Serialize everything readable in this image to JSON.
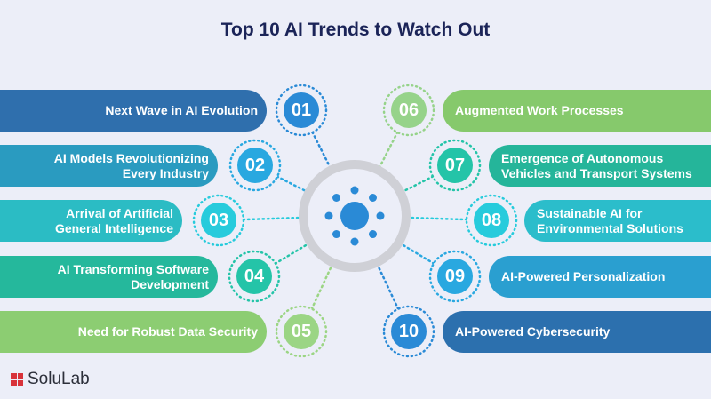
{
  "title": "Top 10 AI Trends to Watch Out",
  "trends": [
    {
      "num": "01",
      "label": "Next Wave in AI Evolution",
      "bar": "#2f6fad",
      "circle": "#2a8ad6"
    },
    {
      "num": "02",
      "label": "AI Models Revolutionizing Every Industry",
      "bar": "#2a9bc0",
      "circle": "#29a8e0"
    },
    {
      "num": "03",
      "label": "Arrival of Artificial General Intelligence",
      "bar": "#2bbcc4",
      "circle": "#27cbdc"
    },
    {
      "num": "04",
      "label": "AI Transforming Software Development",
      "bar": "#25b89c",
      "circle": "#24c4a8"
    },
    {
      "num": "05",
      "label": "Need for Robust Data Security",
      "bar": "#8ccd72",
      "circle": "#9bd584"
    },
    {
      "num": "06",
      "label": "Augmented Work Processes",
      "bar": "#86c96c",
      "circle": "#96d38a"
    },
    {
      "num": "07",
      "label": "Emergence of Autonomous Vehicles and Transport Systems",
      "bar": "#25b59a",
      "circle": "#24c4a8"
    },
    {
      "num": "08",
      "label": "Sustainable AI for Environmental Solutions",
      "bar": "#2bbdcb",
      "circle": "#27cbdc"
    },
    {
      "num": "09",
      "label": "AI-Powered Personalization",
      "bar": "#2a9fd0",
      "circle": "#29a8e0"
    },
    {
      "num": "10",
      "label": "AI-Powered Cybersecurity",
      "bar": "#2c70ae",
      "circle": "#2a8ad6"
    }
  ],
  "logo": {
    "text": "SoluLab",
    "color": "#d8323a"
  }
}
